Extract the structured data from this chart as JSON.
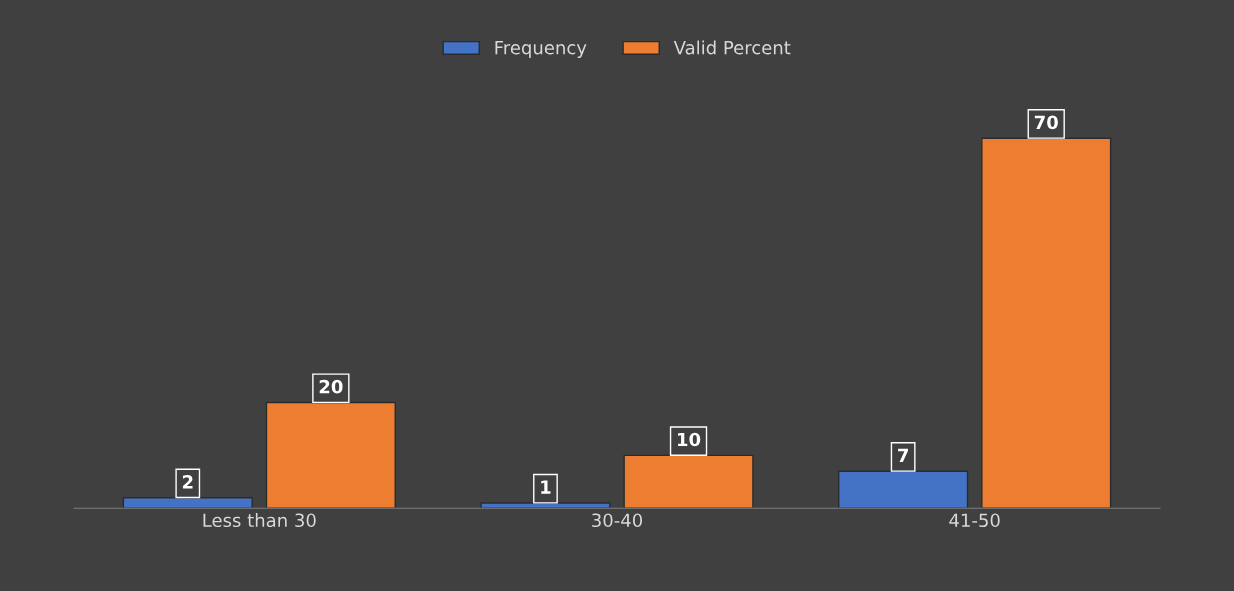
{
  "chart_data": {
    "type": "bar",
    "categories": [
      "Less than 30",
      "30-40",
      "41-50"
    ],
    "series": [
      {
        "name": "Frequency",
        "color": "#4472c4",
        "values": [
          2,
          1,
          7
        ]
      },
      {
        "name": "Valid Percent",
        "color": "#ed7d31",
        "values": [
          20,
          10,
          70
        ]
      }
    ],
    "data_labels": true,
    "legend": "top",
    "grid": false
  }
}
